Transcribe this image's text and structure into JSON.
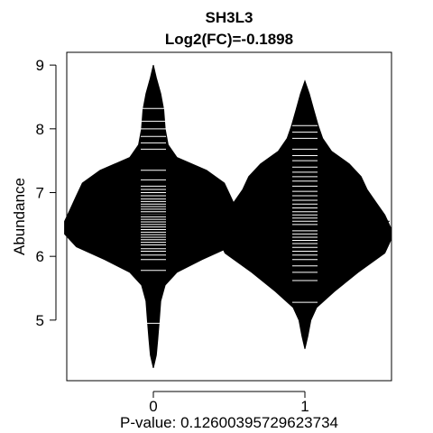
{
  "chart_data": {
    "type": "beanplot",
    "title": "SH3L3",
    "subtitle": "Log2(FC)=-0.1898",
    "xlabel": "P-value: 0.12600395729623734",
    "ylabel": "Abundance",
    "categories": [
      "0",
      "1"
    ],
    "yticks": [
      "5",
      "6",
      "7",
      "8",
      "9"
    ],
    "ylim": [
      4.05,
      9.2
    ],
    "overall_mean": 6.55,
    "grid": false,
    "series": [
      {
        "group": "0",
        "mean": 6.65,
        "density": [
          [
            4.25,
            0.0
          ],
          [
            4.45,
            0.02
          ],
          [
            4.7,
            0.03
          ],
          [
            5.0,
            0.04
          ],
          [
            5.3,
            0.05
          ],
          [
            5.55,
            0.08
          ],
          [
            5.75,
            0.16
          ],
          [
            5.95,
            0.33
          ],
          [
            6.15,
            0.52
          ],
          [
            6.35,
            0.6
          ],
          [
            6.55,
            0.6
          ],
          [
            6.75,
            0.56
          ],
          [
            6.95,
            0.52
          ],
          [
            7.15,
            0.48
          ],
          [
            7.35,
            0.36
          ],
          [
            7.55,
            0.16
          ],
          [
            7.75,
            0.1
          ],
          [
            8.0,
            0.08
          ],
          [
            8.3,
            0.07
          ],
          [
            8.55,
            0.05
          ],
          [
            8.8,
            0.02
          ],
          [
            9.0,
            0.0
          ]
        ],
        "points": [
          4.95,
          5.78,
          5.95,
          6.02,
          6.08,
          6.12,
          6.18,
          6.22,
          6.26,
          6.3,
          6.34,
          6.38,
          6.42,
          6.46,
          6.5,
          6.54,
          6.58,
          6.62,
          6.66,
          6.7,
          6.74,
          6.78,
          6.82,
          6.86,
          6.9,
          6.95,
          7.0,
          7.05,
          7.1,
          7.2,
          7.35,
          7.68,
          7.78,
          7.88,
          8.0,
          8.12,
          8.32
        ]
      },
      {
        "group": "1",
        "mean": 6.45,
        "density": [
          [
            4.55,
            0.0
          ],
          [
            4.75,
            0.02
          ],
          [
            5.0,
            0.04
          ],
          [
            5.2,
            0.08
          ],
          [
            5.45,
            0.2
          ],
          [
            5.75,
            0.36
          ],
          [
            6.05,
            0.54
          ],
          [
            6.25,
            0.58
          ],
          [
            6.45,
            0.58
          ],
          [
            6.65,
            0.54
          ],
          [
            6.85,
            0.48
          ],
          [
            7.05,
            0.42
          ],
          [
            7.25,
            0.38
          ],
          [
            7.45,
            0.3
          ],
          [
            7.65,
            0.18
          ],
          [
            7.85,
            0.12
          ],
          [
            8.05,
            0.09
          ],
          [
            8.3,
            0.06
          ],
          [
            8.55,
            0.03
          ],
          [
            8.75,
            0.0
          ]
        ],
        "points": [
          5.28,
          5.62,
          5.75,
          5.85,
          5.95,
          6.02,
          6.08,
          6.14,
          6.2,
          6.25,
          6.3,
          6.35,
          6.4,
          6.45,
          6.5,
          6.55,
          6.6,
          6.65,
          6.7,
          6.76,
          6.82,
          6.88,
          6.95,
          7.02,
          7.1,
          7.18,
          7.25,
          7.32,
          7.4,
          7.5,
          7.58,
          7.68,
          7.85,
          7.95,
          8.05
        ]
      }
    ]
  }
}
